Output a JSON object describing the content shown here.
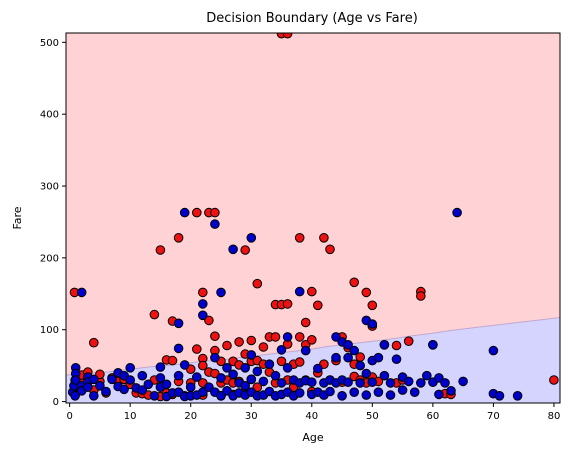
{
  "chart_data": {
    "type": "scatter",
    "title": "Decision Boundary (Age vs Fare)",
    "xlabel": "Age",
    "ylabel": "Fare",
    "xlim": [
      -0.6,
      81
    ],
    "ylim": [
      -2,
      513
    ],
    "xticks": [
      0,
      10,
      20,
      30,
      40,
      50,
      60,
      70,
      80
    ],
    "yticks": [
      0,
      100,
      200,
      300,
      400,
      500
    ],
    "grid": false,
    "colors": {
      "class_0_region": "#d4d4ff",
      "class_1_region": "#ffd3d5",
      "class_0_point": "#0000cc",
      "class_1_point": "#ee1111",
      "point_edge": "#000000",
      "boundary": "#c0a8d0"
    },
    "boundary": {
      "x": [
        -0.6,
        2,
        4,
        6,
        8,
        10,
        12,
        14,
        16,
        18,
        20,
        22,
        24,
        26,
        28,
        30,
        32,
        34,
        36,
        38,
        40,
        42,
        44,
        46,
        48,
        50,
        52,
        54,
        56,
        58,
        60,
        62,
        64,
        66,
        68,
        70,
        72,
        74,
        76,
        78,
        80,
        81
      ],
      "fare": [
        37,
        38,
        40,
        41,
        43,
        45,
        47,
        49,
        50,
        52,
        54,
        56,
        57,
        59,
        61,
        63,
        65,
        67,
        69,
        71,
        73,
        76,
        78,
        80,
        82,
        84,
        86,
        88,
        91,
        93,
        95,
        98,
        100,
        102,
        104,
        106,
        108,
        110,
        112,
        114,
        116,
        117
      ]
    },
    "series": [
      {
        "class": 1,
        "points": [
          [
            0.8,
            152
          ],
          [
            0.9,
            30
          ],
          [
            1,
            12
          ],
          [
            2,
            26
          ],
          [
            2,
            37
          ],
          [
            3,
            41
          ],
          [
            4,
            82
          ],
          [
            4,
            16
          ],
          [
            5,
            28
          ],
          [
            5,
            38
          ],
          [
            6,
            12
          ],
          [
            7,
            33
          ],
          [
            8,
            28
          ],
          [
            9,
            31
          ],
          [
            10,
            24
          ],
          [
            11,
            12
          ],
          [
            12,
            11
          ],
          [
            13,
            9
          ],
          [
            14,
            121
          ],
          [
            14,
            30
          ],
          [
            15,
            211
          ],
          [
            15,
            7
          ],
          [
            16,
            58
          ],
          [
            16,
            12
          ],
          [
            17,
            112
          ],
          [
            17,
            57
          ],
          [
            17,
            10
          ],
          [
            18,
            228
          ],
          [
            18,
            28
          ],
          [
            19,
            8
          ],
          [
            20,
            45
          ],
          [
            20,
            26
          ],
          [
            21,
            263
          ],
          [
            21,
            73
          ],
          [
            22,
            152
          ],
          [
            22,
            60
          ],
          [
            22,
            50
          ],
          [
            22,
            26
          ],
          [
            22,
            9
          ],
          [
            23,
            263
          ],
          [
            23,
            113
          ],
          [
            23,
            41
          ],
          [
            24,
            263
          ],
          [
            24,
            71
          ],
          [
            24,
            39
          ],
          [
            24,
            91
          ],
          [
            25,
            56
          ],
          [
            25,
            26
          ],
          [
            25,
            8
          ],
          [
            26,
            30
          ],
          [
            26,
            78
          ],
          [
            27,
            56
          ],
          [
            27,
            26
          ],
          [
            27,
            10
          ],
          [
            28,
            83
          ],
          [
            28,
            51
          ],
          [
            28,
            28
          ],
          [
            29,
            211
          ],
          [
            29,
            66
          ],
          [
            30,
            85
          ],
          [
            30,
            56
          ],
          [
            30,
            31
          ],
          [
            31,
            164
          ],
          [
            31,
            57
          ],
          [
            31,
            20
          ],
          [
            32,
            76
          ],
          [
            32,
            52
          ],
          [
            33,
            90
          ],
          [
            33,
            41
          ],
          [
            34,
            135
          ],
          [
            34,
            90
          ],
          [
            34,
            26
          ],
          [
            35,
            512
          ],
          [
            35,
            135
          ],
          [
            35,
            56
          ],
          [
            36,
            512
          ],
          [
            36,
            136
          ],
          [
            36,
            80
          ],
          [
            36,
            30
          ],
          [
            37,
            52
          ],
          [
            37,
            20
          ],
          [
            38,
            228
          ],
          [
            38,
            90
          ],
          [
            38,
            55
          ],
          [
            39,
            110
          ],
          [
            39,
            79
          ],
          [
            39,
            30
          ],
          [
            40,
            153
          ],
          [
            40,
            86
          ],
          [
            40,
            14
          ],
          [
            41,
            134
          ],
          [
            41,
            40
          ],
          [
            42,
            228
          ],
          [
            42,
            52
          ],
          [
            43,
            212
          ],
          [
            43,
            30
          ],
          [
            44,
            57
          ],
          [
            45,
            90
          ],
          [
            45,
            27
          ],
          [
            46,
            75
          ],
          [
            47,
            166
          ],
          [
            47,
            52
          ],
          [
            47,
            35
          ],
          [
            48,
            30
          ],
          [
            48,
            62
          ],
          [
            49,
            152
          ],
          [
            49,
            26
          ],
          [
            50,
            134
          ],
          [
            50,
            105
          ],
          [
            50,
            34
          ],
          [
            51,
            28
          ],
          [
            52,
            79
          ],
          [
            54,
            78
          ],
          [
            54,
            26
          ],
          [
            55,
            30
          ],
          [
            56,
            84
          ],
          [
            58,
            153
          ],
          [
            58,
            147
          ],
          [
            60,
            79
          ],
          [
            62,
            11
          ],
          [
            63,
            10
          ],
          [
            80,
            30
          ]
        ]
      },
      {
        "class": 0,
        "points": [
          [
            0.5,
            13
          ],
          [
            0.7,
            22
          ],
          [
            0.9,
            8
          ],
          [
            1,
            47
          ],
          [
            1,
            39
          ],
          [
            1,
            30
          ],
          [
            2,
            152
          ],
          [
            2,
            22
          ],
          [
            2,
            15
          ],
          [
            3,
            34
          ],
          [
            3,
            27
          ],
          [
            3,
            20
          ],
          [
            4,
            8
          ],
          [
            4,
            31
          ],
          [
            5,
            22
          ],
          [
            6,
            14
          ],
          [
            7,
            31
          ],
          [
            8,
            40
          ],
          [
            8,
            21
          ],
          [
            9,
            36
          ],
          [
            9,
            17
          ],
          [
            10,
            47
          ],
          [
            10,
            30
          ],
          [
            11,
            19
          ],
          [
            12,
            36
          ],
          [
            12,
            16
          ],
          [
            13,
            24
          ],
          [
            14,
            8
          ],
          [
            15,
            48
          ],
          [
            15,
            33
          ],
          [
            15,
            20
          ],
          [
            16,
            7
          ],
          [
            16,
            24
          ],
          [
            17,
            12
          ],
          [
            18,
            109
          ],
          [
            18,
            74
          ],
          [
            18,
            36
          ],
          [
            18,
            13
          ],
          [
            19,
            263
          ],
          [
            19,
            51
          ],
          [
            19,
            7
          ],
          [
            20,
            20
          ],
          [
            20,
            8
          ],
          [
            21,
            34
          ],
          [
            21,
            9
          ],
          [
            22,
            136
          ],
          [
            22,
            120
          ],
          [
            22,
            13
          ],
          [
            23,
            20
          ],
          [
            24,
            247
          ],
          [
            24,
            61
          ],
          [
            24,
            13
          ],
          [
            25,
            152
          ],
          [
            25,
            33
          ],
          [
            25,
            8
          ],
          [
            26,
            47
          ],
          [
            26,
            15
          ],
          [
            27,
            212
          ],
          [
            27,
            38
          ],
          [
            27,
            8
          ],
          [
            28,
            26
          ],
          [
            28,
            12
          ],
          [
            29,
            47
          ],
          [
            29,
            22
          ],
          [
            29,
            9
          ],
          [
            30,
            228
          ],
          [
            30,
            65
          ],
          [
            30,
            31
          ],
          [
            30,
            13
          ],
          [
            31,
            42
          ],
          [
            31,
            8
          ],
          [
            32,
            28
          ],
          [
            32,
            9
          ],
          [
            33,
            52
          ],
          [
            33,
            14
          ],
          [
            34,
            36
          ],
          [
            34,
            8
          ],
          [
            35,
            72
          ],
          [
            35,
            26
          ],
          [
            35,
            10
          ],
          [
            36,
            90
          ],
          [
            36,
            47
          ],
          [
            36,
            13
          ],
          [
            37,
            30
          ],
          [
            37,
            8
          ],
          [
            38,
            153
          ],
          [
            38,
            26
          ],
          [
            38,
            12
          ],
          [
            39,
            71
          ],
          [
            39,
            29
          ],
          [
            40,
            27
          ],
          [
            40,
            10
          ],
          [
            41,
            46
          ],
          [
            41,
            13
          ],
          [
            42,
            26
          ],
          [
            42,
            9
          ],
          [
            43,
            30
          ],
          [
            43,
            14
          ],
          [
            44,
            90
          ],
          [
            44,
            61
          ],
          [
            44,
            26
          ],
          [
            45,
            83
          ],
          [
            45,
            30
          ],
          [
            45,
            8
          ],
          [
            46,
            79
          ],
          [
            46,
            61
          ],
          [
            46,
            27
          ],
          [
            47,
            71
          ],
          [
            47,
            13
          ],
          [
            48,
            50
          ],
          [
            48,
            26
          ],
          [
            49,
            113
          ],
          [
            49,
            39
          ],
          [
            49,
            9
          ],
          [
            50,
            108
          ],
          [
            50,
            57
          ],
          [
            50,
            27
          ],
          [
            51,
            61
          ],
          [
            51,
            13
          ],
          [
            52,
            79
          ],
          [
            52,
            36
          ],
          [
            53,
            26
          ],
          [
            53,
            9
          ],
          [
            54,
            59
          ],
          [
            55,
            34
          ],
          [
            55,
            16
          ],
          [
            56,
            28
          ],
          [
            57,
            13
          ],
          [
            58,
            26
          ],
          [
            59,
            36
          ],
          [
            60,
            79
          ],
          [
            60,
            27
          ],
          [
            61,
            33
          ],
          [
            61,
            10
          ],
          [
            62,
            26
          ],
          [
            63,
            15
          ],
          [
            64,
            263
          ],
          [
            65,
            28
          ],
          [
            70,
            71
          ],
          [
            70,
            11
          ],
          [
            71,
            8
          ],
          [
            74,
            8
          ]
        ]
      }
    ]
  }
}
